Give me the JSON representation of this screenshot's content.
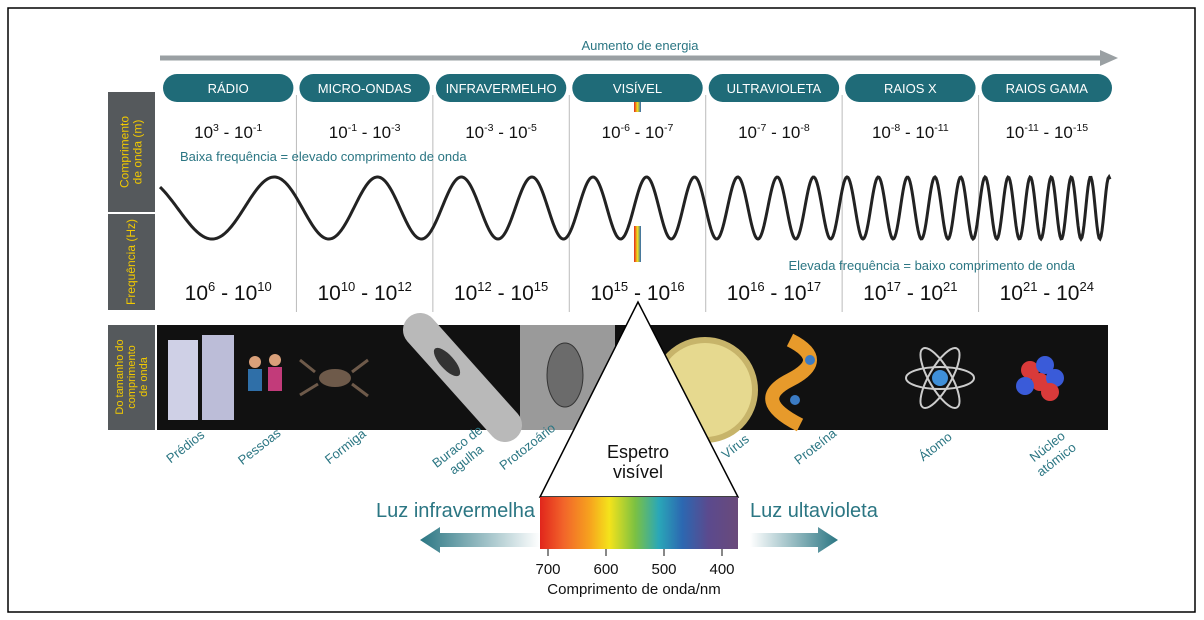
{
  "energy_label": "Aumento de energia",
  "power_base": "10",
  "range_separator": " - ",
  "bands": [
    {
      "name": "RÁDIO",
      "wavelength": [
        "3",
        "-1"
      ],
      "frequency": [
        "6",
        "10"
      ]
    },
    {
      "name": "MICRO-ONDAS",
      "wavelength": [
        "-1",
        "-3"
      ],
      "frequency": [
        "10",
        "12"
      ]
    },
    {
      "name": "INFRAVERMELHO",
      "wavelength": [
        "-3",
        "-5"
      ],
      "frequency": [
        "12",
        "15"
      ]
    },
    {
      "name": "VISÍVEL",
      "wavelength": [
        "-6",
        "-7"
      ],
      "frequency": [
        "15",
        "16"
      ]
    },
    {
      "name": "ULTRAVIOLETA",
      "wavelength": [
        "-7",
        "-8"
      ],
      "frequency": [
        "16",
        "17"
      ]
    },
    {
      "name": "RAIOS X",
      "wavelength": [
        "-8",
        "-11"
      ],
      "frequency": [
        "17",
        "21"
      ]
    },
    {
      "name": "RAIOS GAMA",
      "wavelength": [
        "-11",
        "-15"
      ],
      "frequency": [
        "21",
        "24"
      ]
    }
  ],
  "side_labels": {
    "wavelength": [
      "Comprimento",
      "de onda (m)"
    ],
    "frequency": [
      "Frequência (Hz)"
    ],
    "size": [
      "Do tamanho do",
      "comprimento",
      "de onda"
    ]
  },
  "low_frequency_note": "Baixa frequência = elevado comprimento de onda",
  "high_frequency_note": "Elevada frequência = baixo comprimento de onda",
  "size_objects": [
    [
      "Prédios"
    ],
    [
      "Pessoas"
    ],
    [
      "Formiga"
    ],
    [
      "Buraco de",
      "agulha"
    ],
    [
      "Protozoário"
    ],
    [
      "Vírus"
    ],
    [
      "Proteína"
    ],
    [
      "Átomo"
    ],
    [
      "Núcleo",
      "atómico"
    ]
  ],
  "visible_spectrum": {
    "title": [
      "Espetro",
      "visível"
    ],
    "infrared_label": "Luz infravermelha",
    "ultraviolet_label": "Luz ultavioleta",
    "ticks": [
      700,
      600,
      500,
      400
    ],
    "axis_label": "Comprimento de onda/nm"
  }
}
